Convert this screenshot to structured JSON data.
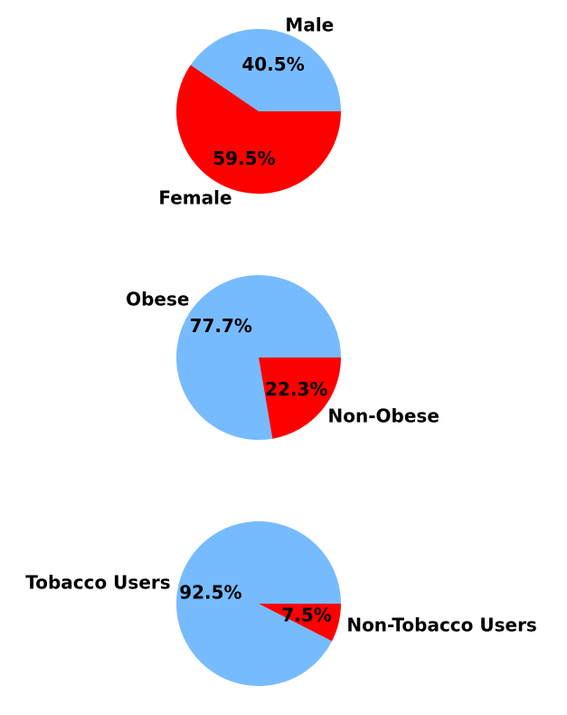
{
  "chart_data": [
    {
      "type": "pie",
      "labels": [
        "Male",
        "Female"
      ],
      "values": [
        40.5,
        59.5
      ],
      "colors": [
        "#77bbff",
        "#ff0000"
      ],
      "value_labels": [
        "40.5%",
        "59.5%"
      ]
    },
    {
      "type": "pie",
      "labels": [
        "Obese",
        "Non-Obese"
      ],
      "values": [
        77.7,
        22.3
      ],
      "colors": [
        "#77bbff",
        "#ff0000"
      ],
      "value_labels": [
        "77.7%",
        "22.3%"
      ]
    },
    {
      "type": "pie",
      "labels": [
        "Tobacco Users",
        "Non-Tobacco Users"
      ],
      "values": [
        92.5,
        7.5
      ],
      "colors": [
        "#77bbff",
        "#ff0000"
      ],
      "value_labels": [
        "92.5%",
        "7.5%"
      ]
    }
  ]
}
